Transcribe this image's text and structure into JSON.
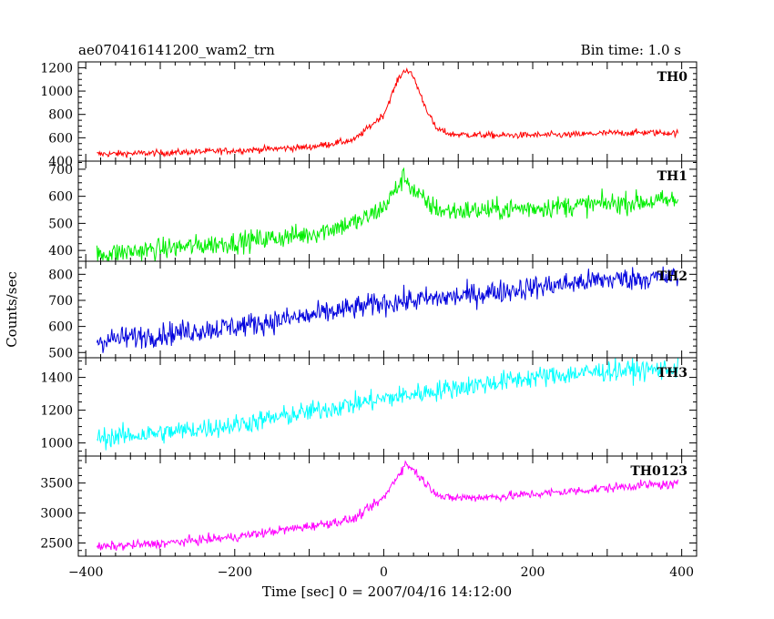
{
  "header": {
    "title": "ae070416141200_wam2_trn",
    "bin_time": "Bin time: 1.0 s"
  },
  "axes": {
    "xlabel": "Time [sec] 0 = 2007/04/16 14:12:00",
    "ylabel": "Counts/sec"
  },
  "chart_data": {
    "type": "line",
    "title": "ae070416141200_wam2_trn",
    "subtitle": "Bin time: 1.0 s",
    "xlabel": "Time [sec] 0 = 2007/04/16 14:12:00",
    "ylabel": "Counts/sec",
    "xlim": [
      -410,
      420
    ],
    "x_ticks": [
      -400,
      -200,
      0,
      200,
      400
    ],
    "x_range_data": [
      -385,
      395
    ],
    "legend": "none",
    "grid": false,
    "panels": [
      {
        "name": "TH0",
        "color": "#ff0000",
        "ylim": [
          400,
          1250
        ],
        "y_ticks": [
          400,
          600,
          800,
          1000,
          1200
        ],
        "noise": 20,
        "key_points": [
          [
            -385,
            460
          ],
          [
            -300,
            470
          ],
          [
            -200,
            490
          ],
          [
            -100,
            520
          ],
          [
            -40,
            580
          ],
          [
            0,
            800
          ],
          [
            20,
            1110
          ],
          [
            30,
            1190
          ],
          [
            40,
            1120
          ],
          [
            55,
            880
          ],
          [
            70,
            680
          ],
          [
            90,
            630
          ],
          [
            150,
            620
          ],
          [
            250,
            625
          ],
          [
            300,
            640
          ],
          [
            350,
            645
          ],
          [
            395,
            640
          ]
        ]
      },
      {
        "name": "TH1",
        "color": "#00ee00",
        "ylim": [
          360,
          730
        ],
        "y_ticks": [
          400,
          500,
          600,
          700
        ],
        "noise": 28,
        "key_points": [
          [
            -385,
            385
          ],
          [
            -300,
            405
          ],
          [
            -200,
            430
          ],
          [
            -100,
            460
          ],
          [
            -30,
            510
          ],
          [
            0,
            560
          ],
          [
            20,
            640
          ],
          [
            28,
            675
          ],
          [
            40,
            620
          ],
          [
            60,
            570
          ],
          [
            80,
            545
          ],
          [
            150,
            550
          ],
          [
            250,
            565
          ],
          [
            350,
            580
          ],
          [
            395,
            585
          ]
        ]
      },
      {
        "name": "TH2",
        "color": "#0000dd",
        "ylim": [
          480,
          850
        ],
        "y_ticks": [
          500,
          600,
          700,
          800
        ],
        "noise": 32,
        "key_points": [
          [
            -385,
            545
          ],
          [
            -300,
            570
          ],
          [
            -200,
            600
          ],
          [
            -100,
            640
          ],
          [
            0,
            690
          ],
          [
            100,
            715
          ],
          [
            200,
            750
          ],
          [
            300,
            780
          ],
          [
            395,
            790
          ]
        ]
      },
      {
        "name": "TH3",
        "color": "#00ffff",
        "ylim": [
          920,
          1520
        ],
        "y_ticks": [
          1000,
          1200,
          1400
        ],
        "noise": 45,
        "key_points": [
          [
            -385,
            1030
          ],
          [
            -300,
            1060
          ],
          [
            -200,
            1110
          ],
          [
            -100,
            1190
          ],
          [
            0,
            1270
          ],
          [
            100,
            1340
          ],
          [
            200,
            1400
          ],
          [
            300,
            1440
          ],
          [
            395,
            1450
          ]
        ]
      },
      {
        "name": "TH0123",
        "color": "#ff00ff",
        "ylim": [
          2280,
          3950
        ],
        "y_ticks": [
          2500,
          3000,
          3500
        ],
        "noise": 55,
        "key_points": [
          [
            -385,
            2430
          ],
          [
            -300,
            2490
          ],
          [
            -200,
            2600
          ],
          [
            -100,
            2780
          ],
          [
            -40,
            2900
          ],
          [
            0,
            3250
          ],
          [
            20,
            3650
          ],
          [
            30,
            3820
          ],
          [
            40,
            3720
          ],
          [
            60,
            3450
          ],
          [
            80,
            3250
          ],
          [
            150,
            3270
          ],
          [
            250,
            3360
          ],
          [
            350,
            3470
          ],
          [
            395,
            3470
          ]
        ]
      }
    ]
  }
}
